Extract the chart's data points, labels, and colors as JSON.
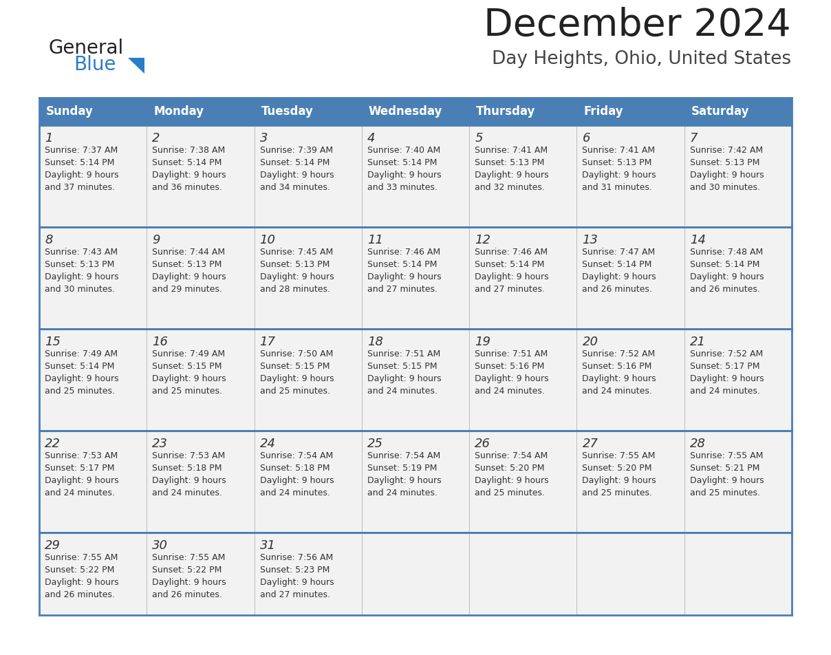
{
  "title": "December 2024",
  "subtitle": "Day Heights, Ohio, United States",
  "header_bg": "#4a7fb5",
  "header_text_color": "#FFFFFF",
  "day_names": [
    "Sunday",
    "Monday",
    "Tuesday",
    "Wednesday",
    "Thursday",
    "Friday",
    "Saturday"
  ],
  "row_bg": "#f2f2f2",
  "border_color": "#4a7fb5",
  "text_color": "#333333",
  "days": [
    {
      "day": 1,
      "col": 0,
      "row": 0,
      "sunrise": "7:37 AM",
      "sunset": "5:14 PM",
      "daylight_min": "37"
    },
    {
      "day": 2,
      "col": 1,
      "row": 0,
      "sunrise": "7:38 AM",
      "sunset": "5:14 PM",
      "daylight_min": "36"
    },
    {
      "day": 3,
      "col": 2,
      "row": 0,
      "sunrise": "7:39 AM",
      "sunset": "5:14 PM",
      "daylight_min": "34"
    },
    {
      "day": 4,
      "col": 3,
      "row": 0,
      "sunrise": "7:40 AM",
      "sunset": "5:14 PM",
      "daylight_min": "33"
    },
    {
      "day": 5,
      "col": 4,
      "row": 0,
      "sunrise": "7:41 AM",
      "sunset": "5:13 PM",
      "daylight_min": "32"
    },
    {
      "day": 6,
      "col": 5,
      "row": 0,
      "sunrise": "7:41 AM",
      "sunset": "5:13 PM",
      "daylight_min": "31"
    },
    {
      "day": 7,
      "col": 6,
      "row": 0,
      "sunrise": "7:42 AM",
      "sunset": "5:13 PM",
      "daylight_min": "30"
    },
    {
      "day": 8,
      "col": 0,
      "row": 1,
      "sunrise": "7:43 AM",
      "sunset": "5:13 PM",
      "daylight_min": "30"
    },
    {
      "day": 9,
      "col": 1,
      "row": 1,
      "sunrise": "7:44 AM",
      "sunset": "5:13 PM",
      "daylight_min": "29"
    },
    {
      "day": 10,
      "col": 2,
      "row": 1,
      "sunrise": "7:45 AM",
      "sunset": "5:13 PM",
      "daylight_min": "28"
    },
    {
      "day": 11,
      "col": 3,
      "row": 1,
      "sunrise": "7:46 AM",
      "sunset": "5:14 PM",
      "daylight_min": "27"
    },
    {
      "day": 12,
      "col": 4,
      "row": 1,
      "sunrise": "7:46 AM",
      "sunset": "5:14 PM",
      "daylight_min": "27"
    },
    {
      "day": 13,
      "col": 5,
      "row": 1,
      "sunrise": "7:47 AM",
      "sunset": "5:14 PM",
      "daylight_min": "26"
    },
    {
      "day": 14,
      "col": 6,
      "row": 1,
      "sunrise": "7:48 AM",
      "sunset": "5:14 PM",
      "daylight_min": "26"
    },
    {
      "day": 15,
      "col": 0,
      "row": 2,
      "sunrise": "7:49 AM",
      "sunset": "5:14 PM",
      "daylight_min": "25"
    },
    {
      "day": 16,
      "col": 1,
      "row": 2,
      "sunrise": "7:49 AM",
      "sunset": "5:15 PM",
      "daylight_min": "25"
    },
    {
      "day": 17,
      "col": 2,
      "row": 2,
      "sunrise": "7:50 AM",
      "sunset": "5:15 PM",
      "daylight_min": "25"
    },
    {
      "day": 18,
      "col": 3,
      "row": 2,
      "sunrise": "7:51 AM",
      "sunset": "5:15 PM",
      "daylight_min": "24"
    },
    {
      "day": 19,
      "col": 4,
      "row": 2,
      "sunrise": "7:51 AM",
      "sunset": "5:16 PM",
      "daylight_min": "24"
    },
    {
      "day": 20,
      "col": 5,
      "row": 2,
      "sunrise": "7:52 AM",
      "sunset": "5:16 PM",
      "daylight_min": "24"
    },
    {
      "day": 21,
      "col": 6,
      "row": 2,
      "sunrise": "7:52 AM",
      "sunset": "5:17 PM",
      "daylight_min": "24"
    },
    {
      "day": 22,
      "col": 0,
      "row": 3,
      "sunrise": "7:53 AM",
      "sunset": "5:17 PM",
      "daylight_min": "24"
    },
    {
      "day": 23,
      "col": 1,
      "row": 3,
      "sunrise": "7:53 AM",
      "sunset": "5:18 PM",
      "daylight_min": "24"
    },
    {
      "day": 24,
      "col": 2,
      "row": 3,
      "sunrise": "7:54 AM",
      "sunset": "5:18 PM",
      "daylight_min": "24"
    },
    {
      "day": 25,
      "col": 3,
      "row": 3,
      "sunrise": "7:54 AM",
      "sunset": "5:19 PM",
      "daylight_min": "24"
    },
    {
      "day": 26,
      "col": 4,
      "row": 3,
      "sunrise": "7:54 AM",
      "sunset": "5:20 PM",
      "daylight_min": "25"
    },
    {
      "day": 27,
      "col": 5,
      "row": 3,
      "sunrise": "7:55 AM",
      "sunset": "5:20 PM",
      "daylight_min": "25"
    },
    {
      "day": 28,
      "col": 6,
      "row": 3,
      "sunrise": "7:55 AM",
      "sunset": "5:21 PM",
      "daylight_min": "25"
    },
    {
      "day": 29,
      "col": 0,
      "row": 4,
      "sunrise": "7:55 AM",
      "sunset": "5:22 PM",
      "daylight_min": "26"
    },
    {
      "day": 30,
      "col": 1,
      "row": 4,
      "sunrise": "7:55 AM",
      "sunset": "5:22 PM",
      "daylight_min": "26"
    },
    {
      "day": 31,
      "col": 2,
      "row": 4,
      "sunrise": "7:56 AM",
      "sunset": "5:23 PM",
      "daylight_min": "27"
    }
  ]
}
